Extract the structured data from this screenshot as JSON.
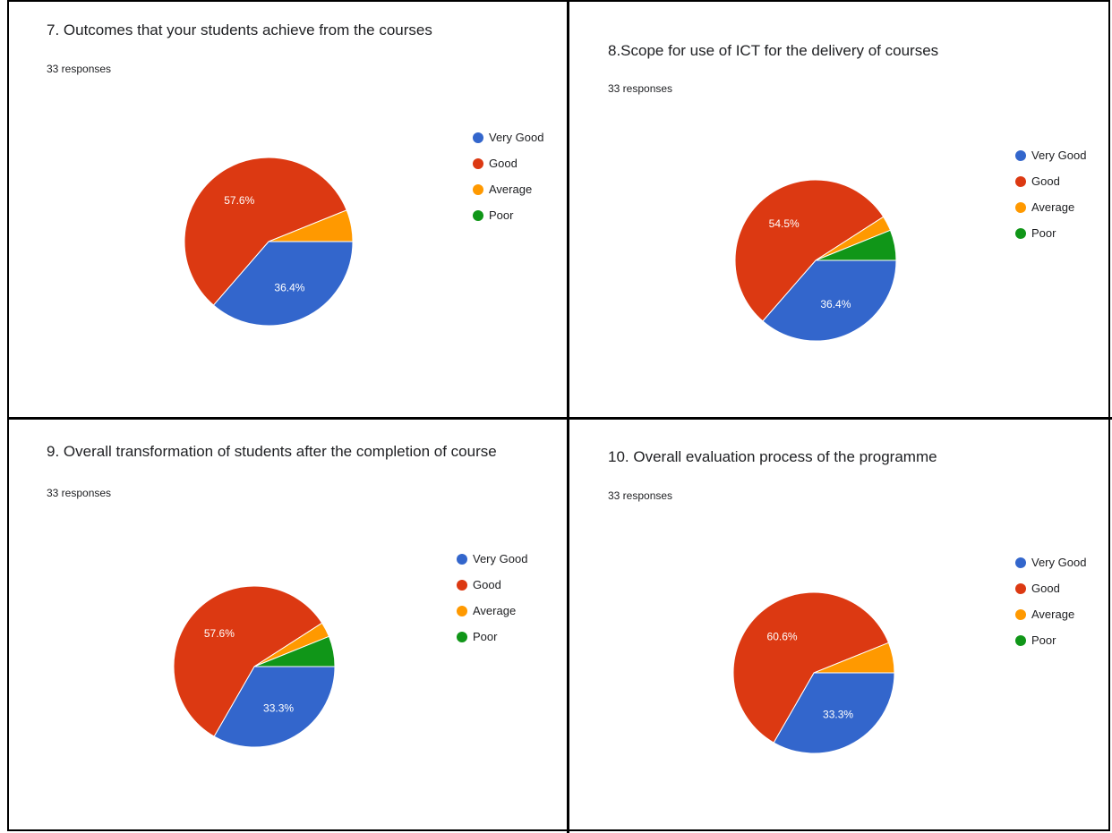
{
  "colors": {
    "very_good": "#3366cc",
    "good": "#dc3912",
    "average": "#ff9900",
    "poor": "#109618"
  },
  "chart_data": [
    {
      "type": "pie",
      "title": "7. Outcomes that your students achieve from the courses",
      "subtitle": "33 responses",
      "categories": [
        "Very Good",
        "Good",
        "Average",
        "Poor"
      ],
      "values": [
        36.4,
        57.6,
        6.1,
        0.0
      ],
      "data_labels": [
        "36.4%",
        "57.6%",
        "",
        ""
      ],
      "legend_position": "right"
    },
    {
      "type": "pie",
      "title": "8.Scope for use of ICT for the delivery of courses",
      "subtitle": "33 responses",
      "categories": [
        "Very Good",
        "Good",
        "Average",
        "Poor"
      ],
      "values": [
        36.4,
        54.5,
        3.0,
        6.1
      ],
      "data_labels": [
        "36.4%",
        "54.5%",
        "",
        ""
      ],
      "legend_position": "right"
    },
    {
      "type": "pie",
      "title": "9. Overall transformation of students after the completion of course",
      "subtitle": "33 responses",
      "categories": [
        "Very Good",
        "Good",
        "Average",
        "Poor"
      ],
      "values": [
        33.3,
        57.6,
        3.0,
        6.1
      ],
      "data_labels": [
        "33.3%",
        "57.6%",
        "",
        ""
      ],
      "legend_position": "right"
    },
    {
      "type": "pie",
      "title": "10. Overall evaluation process of the programme",
      "subtitle": "33 responses",
      "categories": [
        "Very Good",
        "Good",
        "Average",
        "Poor"
      ],
      "values": [
        33.3,
        60.6,
        6.1,
        0.0
      ],
      "data_labels": [
        "33.3%",
        "60.6%",
        "",
        ""
      ],
      "legend_position": "right"
    }
  ]
}
